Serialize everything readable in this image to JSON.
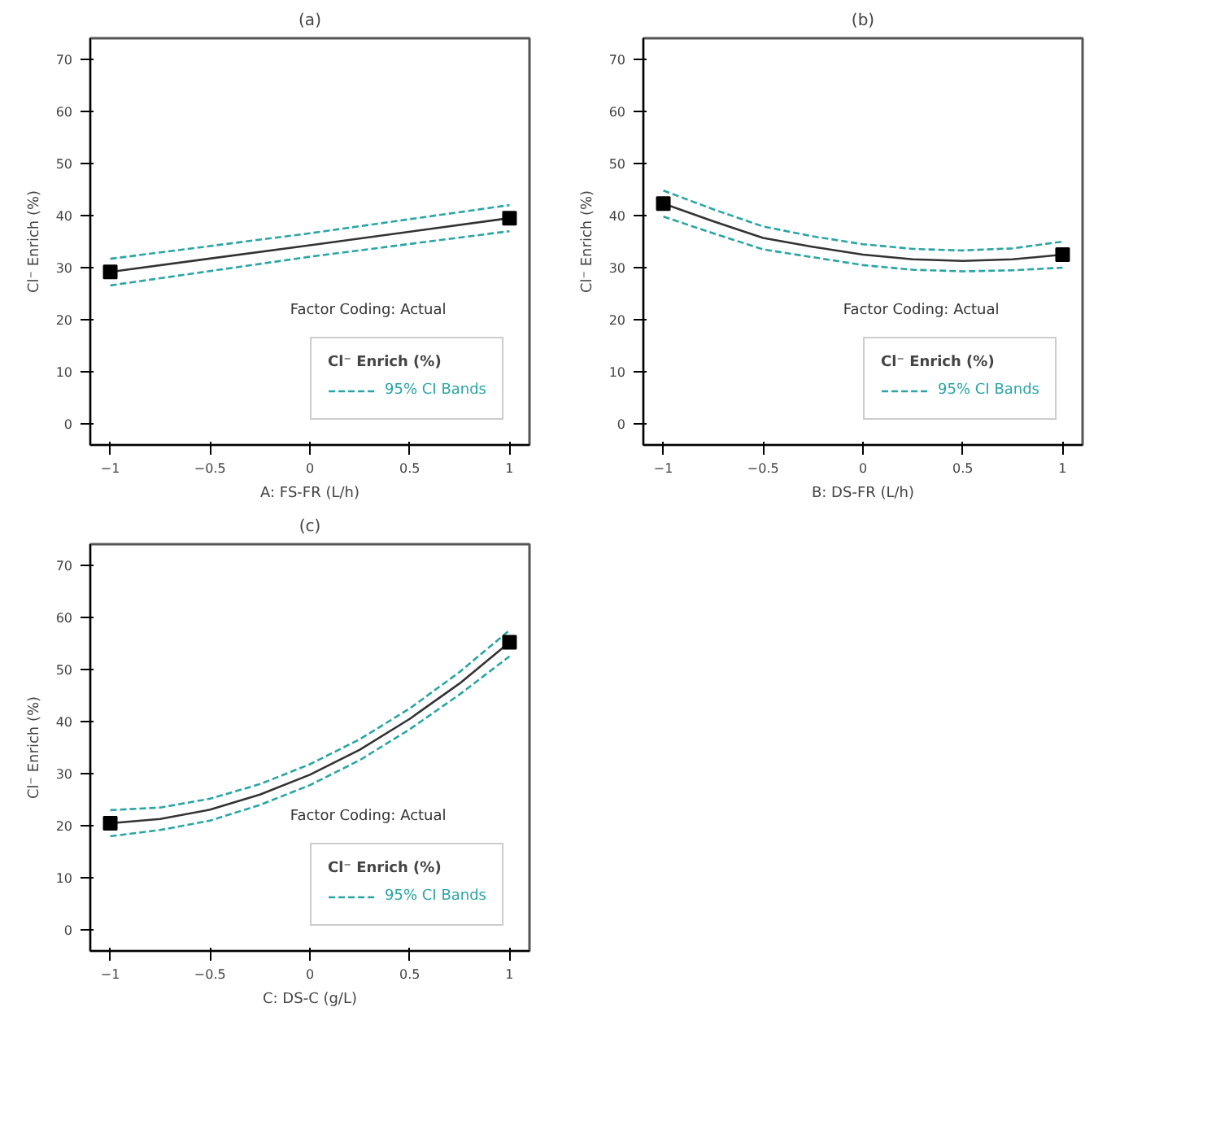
{
  "chart_data": [
    {
      "type": "line",
      "title": "(a)",
      "xlabel": "A: FS-FR (L/h)",
      "ylabel": "Cl⁻ Enrich (%)",
      "legend_title": "Cl⁻ Enrich (%)",
      "annotations": [
        "Factor Coding: Actual"
      ],
      "legend": "bottom right",
      "xlim": [
        -1.1,
        1.1
      ],
      "ylim": [
        -4,
        74
      ],
      "xticks": [
        -1,
        -0.5,
        0,
        0.5,
        1
      ],
      "yticks": [
        0,
        10,
        20,
        30,
        40,
        50,
        60,
        70
      ],
      "series": [
        {
          "color": "#333333",
          "line_style": "solid",
          "x": [
            -1,
            0,
            1
          ],
          "values": [
            29.2,
            34.3,
            39.5
          ]
        },
        {
          "name": "95% CI Bands",
          "color": "#2aa5a5",
          "line_style": "dashed",
          "x": [
            -1,
            0,
            1
          ],
          "values": [
            31.7,
            36.6,
            42.0
          ]
        },
        {
          "color": "#2aa5a5",
          "line_style": "dashed",
          "x": [
            -1,
            0,
            1
          ],
          "values": [
            26.6,
            32.1,
            37.0
          ]
        },
        {
          "type": "scatter",
          "marker": "square",
          "color": "#000000",
          "x": [
            -1,
            1
          ],
          "values": [
            29.2,
            39.5
          ]
        }
      ]
    },
    {
      "type": "line",
      "title": "(b)",
      "xlabel": "B: DS-FR (L/h)",
      "ylabel": "Cl⁻ Enrich (%)",
      "legend_title": "Cl⁻ Enrich (%)",
      "annotations": [
        "Factor Coding: Actual"
      ],
      "legend": "bottom right",
      "xlim": [
        -1.1,
        1.1
      ],
      "ylim": [
        -4,
        74
      ],
      "xticks": [
        -1,
        -0.5,
        0,
        0.5,
        1
      ],
      "yticks": [
        0,
        10,
        20,
        30,
        40,
        50,
        60,
        70
      ],
      "series": [
        {
          "color": "#333333",
          "line_style": "solid",
          "x": [
            -1,
            -0.75,
            -0.5,
            -0.25,
            0,
            0.25,
            0.5,
            0.75,
            1
          ],
          "values": [
            42.3,
            38.9,
            35.7,
            34.0,
            32.5,
            31.6,
            31.3,
            31.6,
            32.5
          ]
        },
        {
          "name": "95% CI Bands",
          "color": "#2aa5a5",
          "line_style": "dashed",
          "x": [
            -1,
            -0.75,
            -0.5,
            -0.25,
            0,
            0.25,
            0.5,
            0.75,
            1
          ],
          "values": [
            44.8,
            41.2,
            37.9,
            36.0,
            34.5,
            33.6,
            33.3,
            33.7,
            35.0
          ]
        },
        {
          "color": "#2aa5a5",
          "line_style": "dashed",
          "x": [
            -1,
            -0.75,
            -0.5,
            -0.25,
            0,
            0.25,
            0.5,
            0.75,
            1
          ],
          "values": [
            39.8,
            36.6,
            33.5,
            32.0,
            30.5,
            29.6,
            29.3,
            29.5,
            30.0
          ]
        },
        {
          "type": "scatter",
          "marker": "square",
          "color": "#000000",
          "x": [
            -1,
            1
          ],
          "values": [
            42.3,
            32.5
          ]
        }
      ]
    },
    {
      "type": "line",
      "title": "(c)",
      "xlabel": "C: DS-C (g/L)",
      "ylabel": "Cl⁻ Enrich (%)",
      "legend_title": "Cl⁻ Enrich (%)",
      "annotations": [
        "Factor Coding: Actual"
      ],
      "legend": "bottom right",
      "xlim": [
        -1.1,
        1.1
      ],
      "ylim": [
        -4,
        74
      ],
      "xticks": [
        -1,
        -0.5,
        0,
        0.5,
        1
      ],
      "yticks": [
        0,
        10,
        20,
        30,
        40,
        50,
        60,
        70
      ],
      "series": [
        {
          "color": "#333333",
          "line_style": "solid",
          "x": [
            -1,
            -0.75,
            -0.5,
            -0.25,
            0,
            0.25,
            0.5,
            0.75,
            1
          ],
          "values": [
            20.5,
            21.3,
            23.1,
            26.0,
            29.8,
            34.6,
            40.5,
            47.3,
            55.2
          ]
        },
        {
          "name": "95% CI Bands",
          "color": "#2aa5a5",
          "line_style": "dashed",
          "x": [
            -1,
            -0.75,
            -0.5,
            -0.25,
            0,
            0.25,
            0.5,
            0.75,
            1
          ],
          "values": [
            23.0,
            23.5,
            25.2,
            28.0,
            31.8,
            36.6,
            42.5,
            49.5,
            57.5
          ]
        },
        {
          "color": "#2aa5a5",
          "line_style": "dashed",
          "x": [
            -1,
            -0.75,
            -0.5,
            -0.25,
            0,
            0.25,
            0.5,
            0.75,
            1
          ],
          "values": [
            18.0,
            19.2,
            21.0,
            24.0,
            27.8,
            32.6,
            38.5,
            45.2,
            52.5
          ]
        },
        {
          "type": "scatter",
          "marker": "square",
          "color": "#000000",
          "x": [
            -1,
            1
          ],
          "values": [
            20.5,
            55.2
          ]
        }
      ]
    }
  ]
}
